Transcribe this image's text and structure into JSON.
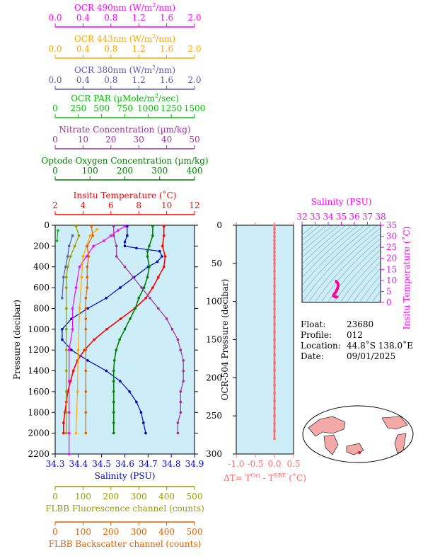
{
  "colors": {
    "ocr490": "#ff00ff",
    "ocr443": "#ffa500",
    "ocr380": "#5a5aa8",
    "par": "#00c000",
    "nitrate": "#993399",
    "oxygen": "#007f00",
    "temperature": "#ff0000",
    "salinity": "#0000cc",
    "fluorescence": "#999900",
    "backscatter": "#e06000",
    "panel_bg": "#cdeef8",
    "dt": "#ff6a6a",
    "ts_curve": "#ff0099",
    "black": "#000000",
    "land": "#f4a8a8",
    "ocean": "#ffffff"
  },
  "chart_data": [
    {
      "type": "line",
      "name": "profile",
      "ylabel": "Pressure (decibar)",
      "y_ticks": [
        "0",
        "200",
        "400",
        "600",
        "800",
        "1000",
        "1200",
        "1400",
        "1600",
        "1800",
        "2000",
        "2200"
      ],
      "ylim": [
        0,
        2200
      ],
      "y_inverted": true,
      "top_axes": [
        {
          "key": "ocr490",
          "label_pre": "OCR 490nm (W/m",
          "label_sup": "2",
          "label_post": "/nm)",
          "ticks": [
            "0.0",
            "0.4",
            "0.8",
            "1.2",
            "1.6",
            "2.0"
          ],
          "range": [
            0,
            2
          ]
        },
        {
          "key": "ocr443",
          "label_pre": "OCR 443nm (W/m",
          "label_sup": "2",
          "label_post": "/nm)",
          "ticks": [
            "0.0",
            "0.4",
            "0.8",
            "1.2",
            "1.6",
            "2.0"
          ],
          "range": [
            0,
            2
          ]
        },
        {
          "key": "ocr380",
          "label_pre": "OCR 380nm (W/m",
          "label_sup": "2",
          "label_post": "/nm)",
          "ticks": [
            "0.0",
            "0.4",
            "0.8",
            "1.2",
            "1.6",
            "2.0"
          ],
          "range": [
            0,
            2
          ]
        },
        {
          "key": "par",
          "label_pre": "OCR PAR (µMole/m",
          "label_sup": "2",
          "label_post": "/sec)",
          "ticks": [
            "0",
            "250",
            "500",
            "750",
            "1000",
            "1250",
            "1500"
          ],
          "range": [
            0,
            1500
          ]
        },
        {
          "key": "nitrate",
          "label_pre": "Nitrate Concentration (µm/kg)",
          "label_sup": "",
          "label_post": "",
          "ticks": [
            "0",
            "10",
            "20",
            "30",
            "40",
            "50"
          ],
          "range": [
            0,
            50
          ]
        },
        {
          "key": "oxygen",
          "label_pre": "Optode Oxygen Concentration (µm/kg)",
          "label_sup": "",
          "label_post": "",
          "ticks": [
            "0",
            "100",
            "200",
            "300",
            "400"
          ],
          "range": [
            0,
            400
          ]
        },
        {
          "key": "temperature",
          "label_pre": "Insitu Temperature (˚C)",
          "label_sup": "",
          "label_post": "",
          "ticks": [
            "2",
            "4",
            "6",
            "8",
            "10",
            "12"
          ],
          "range": [
            2,
            12
          ]
        }
      ],
      "bottom_axes": [
        {
          "key": "salinity",
          "label": "Salinity (PSU)",
          "ticks": [
            "34.3",
            "34.4",
            "34.5",
            "34.6",
            "34.7",
            "34.8",
            "34.9"
          ],
          "range": [
            34.3,
            34.9
          ]
        },
        {
          "key": "fluorescence",
          "label": "FLBB Fluorescence channel (counts)",
          "ticks": [
            "0",
            "100",
            "200",
            "300",
            "400",
            "500"
          ],
          "range": [
            0,
            500
          ]
        },
        {
          "key": "backscatter",
          "label": "FLBB Backscatter channel (counts)",
          "ticks": [
            "0",
            "100",
            "200",
            "300",
            "400",
            "500"
          ],
          "range": [
            0,
            500
          ]
        }
      ],
      "series": [
        {
          "key": "temperature",
          "points": [
            [
              9.8,
              10
            ],
            [
              9.8,
              100
            ],
            [
              9.7,
              200
            ],
            [
              9.9,
              300
            ],
            [
              9.8,
              400
            ],
            [
              9.4,
              500
            ],
            [
              9.0,
              600
            ],
            [
              8.5,
              700
            ],
            [
              7.7,
              800
            ],
            [
              6.7,
              900
            ],
            [
              5.7,
              1000
            ],
            [
              4.8,
              1100
            ],
            [
              4.1,
              1200
            ],
            [
              3.6,
              1300
            ],
            [
              3.3,
              1400
            ],
            [
              3.1,
              1500
            ],
            [
              2.9,
              1600
            ],
            [
              2.8,
              1700
            ],
            [
              2.7,
              1800
            ],
            [
              2.6,
              1900
            ],
            [
              2.6,
              2000
            ]
          ]
        },
        {
          "key": "salinity",
          "points": [
            [
              34.61,
              10
            ],
            [
              34.61,
              100
            ],
            [
              34.6,
              160
            ],
            [
              34.6,
              200
            ],
            [
              34.65,
              220
            ],
            [
              34.75,
              250
            ],
            [
              34.76,
              300
            ],
            [
              34.74,
              350
            ],
            [
              34.7,
              400
            ],
            [
              34.64,
              500
            ],
            [
              34.58,
              600
            ],
            [
              34.52,
              700
            ],
            [
              34.44,
              800
            ],
            [
              34.37,
              900
            ],
            [
              34.33,
              1000
            ],
            [
              34.33,
              1100
            ],
            [
              34.37,
              1200
            ],
            [
              34.44,
              1300
            ],
            [
              34.52,
              1400
            ],
            [
              34.58,
              1500
            ],
            [
              34.62,
              1600
            ],
            [
              34.65,
              1700
            ],
            [
              34.67,
              1800
            ],
            [
              34.68,
              1900
            ],
            [
              34.69,
              2000
            ]
          ]
        },
        {
          "key": "oxygen",
          "points": [
            [
              280,
              10
            ],
            [
              280,
              100
            ],
            [
              270,
              200
            ],
            [
              265,
              250
            ],
            [
              265,
              300
            ],
            [
              270,
              400
            ],
            [
              265,
              500
            ],
            [
              255,
              600
            ],
            [
              240,
              700
            ],
            [
              230,
              800
            ],
            [
              215,
              900
            ],
            [
              200,
              1000
            ],
            [
              185,
              1100
            ],
            [
              175,
              1200
            ],
            [
              170,
              1300
            ],
            [
              168,
              1400
            ],
            [
              168,
              1500
            ],
            [
              168,
              1600
            ],
            [
              168,
              1700
            ],
            [
              168,
              1800
            ],
            [
              168,
              1900
            ],
            [
              168,
              2000
            ]
          ]
        },
        {
          "key": "nitrate",
          "points": [
            [
              21,
              10
            ],
            [
              21,
              100
            ],
            [
              22,
              200
            ],
            [
              22,
              300
            ],
            [
              25,
              400
            ],
            [
              28,
              500
            ],
            [
              31,
              600
            ],
            [
              34,
              700
            ],
            [
              37,
              800
            ],
            [
              40,
              900
            ],
            [
              42,
              1000
            ],
            [
              44,
              1100
            ],
            [
              45,
              1200
            ],
            [
              46,
              1300
            ],
            [
              46,
              1400
            ],
            [
              46,
              1500
            ],
            [
              45,
              1600
            ],
            [
              45,
              1700
            ],
            [
              45,
              1800
            ],
            [
              44,
              1900
            ],
            [
              44,
              2000
            ]
          ]
        },
        {
          "key": "ocr490",
          "points": [
            [
              1.0,
              10
            ],
            [
              0.9,
              50
            ],
            [
              0.8,
              100
            ],
            [
              0.7,
              150
            ],
            [
              0.55,
              200
            ],
            [
              0.45,
              300
            ],
            [
              0.35,
              400
            ],
            [
              0.3,
              600
            ],
            [
              0.25,
              800
            ],
            [
              0.25,
              1000
            ],
            [
              0.2,
              1200
            ],
            [
              0.2,
              1500
            ],
            [
              0.2,
              1800
            ],
            [
              0.2,
              2000
            ],
            [
              0.2,
              2200
            ]
          ]
        },
        {
          "key": "ocr443",
          "points": [
            [
              0.6,
              40
            ],
            [
              0.5,
              100
            ],
            [
              0.45,
              200
            ],
            [
              0.4,
              300
            ],
            [
              0.38,
              500
            ],
            [
              0.35,
              800
            ],
            [
              0.33,
              1200
            ],
            [
              0.32,
              1600
            ],
            [
              0.3,
              2000
            ]
          ]
        },
        {
          "key": "ocr380",
          "points": [
            [
              0.25,
              100
            ],
            [
              0.2,
              200
            ],
            [
              0.18,
              300
            ],
            [
              0.15,
              400
            ],
            [
              0.12,
              500
            ],
            [
              0.1,
              700
            ]
          ]
        },
        {
          "key": "par",
          "points": [
            [
              30,
              50
            ],
            [
              20,
              150
            ]
          ]
        },
        {
          "key": "fluorescence",
          "points": [
            [
              75,
              10
            ],
            [
              85,
              100
            ],
            [
              70,
              200
            ],
            [
              55,
              300
            ],
            [
              45,
              400
            ],
            [
              40,
              500
            ],
            [
              40,
              600
            ],
            [
              40,
              800
            ],
            [
              40,
              1000
            ],
            [
              40,
              1200
            ],
            [
              40,
              1400
            ],
            [
              40,
              1600
            ],
            [
              40,
              1800
            ],
            [
              40,
              2000
            ]
          ]
        },
        {
          "key": "backscatter",
          "points": [
            [
              130,
              10
            ],
            [
              135,
              100
            ],
            [
              115,
              200
            ],
            [
              120,
              300
            ],
            [
              115,
              400
            ],
            [
              115,
              500
            ],
            [
              115,
              600
            ],
            [
              110,
              700
            ],
            [
              110,
              800
            ],
            [
              110,
              900
            ],
            [
              110,
              1000
            ],
            [
              110,
              1200
            ],
            [
              110,
              1400
            ],
            [
              110,
              1600
            ],
            [
              110,
              1800
            ],
            [
              110,
              2000
            ]
          ]
        }
      ]
    },
    {
      "type": "line",
      "name": "delta_t",
      "ylabel": "OCR-504 Pressure (decibar)",
      "xlabel_pre": "ΔT= T",
      "xlabel_sup1": "Ori",
      "xlabel_mid": " - T",
      "xlabel_sup2": "SBE",
      "xlabel_post": " (˚C)",
      "x_ticks": [
        "-1.0",
        "-0.5",
        "0.0",
        "0.5"
      ],
      "xlim": [
        -1.0,
        0.5
      ],
      "y_ticks": [
        "0",
        "50",
        "100",
        "150",
        "200",
        "250",
        "300"
      ],
      "ylim": [
        0,
        300
      ],
      "points": [
        [
          0,
          0
        ],
        [
          0,
          5
        ],
        [
          0,
          10
        ],
        [
          0,
          15
        ],
        [
          0,
          20
        ],
        [
          0,
          25
        ],
        [
          0,
          30
        ],
        [
          0,
          35
        ],
        [
          0,
          40
        ],
        [
          0,
          45
        ],
        [
          0,
          50
        ],
        [
          0,
          60
        ],
        [
          0,
          70
        ],
        [
          0,
          80
        ],
        [
          0,
          90
        ],
        [
          0,
          100
        ],
        [
          0,
          110
        ],
        [
          0,
          120
        ],
        [
          0,
          130
        ],
        [
          0,
          140
        ],
        [
          0,
          150
        ],
        [
          0,
          160
        ],
        [
          0,
          170
        ],
        [
          0,
          180
        ],
        [
          0,
          190
        ],
        [
          0,
          200
        ],
        [
          0,
          210
        ],
        [
          0,
          220
        ],
        [
          0,
          230
        ],
        [
          0,
          240
        ],
        [
          0,
          250
        ],
        [
          0,
          260
        ],
        [
          0,
          270
        ],
        [
          0,
          280
        ]
      ]
    },
    {
      "type": "line",
      "name": "ts",
      "xlabel": "Salinity (PSU)",
      "ylabel": "Insitu Temperature (˚C)",
      "x_ticks": [
        "32",
        "33",
        "34",
        "35",
        "36",
        "37",
        "38"
      ],
      "xlim": [
        32,
        38
      ],
      "y_ticks": [
        "0",
        "5",
        "10",
        "15",
        "20",
        "25",
        "30",
        "35"
      ],
      "ylim": [
        0,
        35
      ],
      "points": [
        [
          34.6,
          9.8
        ],
        [
          34.62,
          9.5
        ],
        [
          34.75,
          8.5
        ],
        [
          34.76,
          7.5
        ],
        [
          34.72,
          6.5
        ],
        [
          34.65,
          5.5
        ],
        [
          34.55,
          4.5
        ],
        [
          34.45,
          3.7
        ],
        [
          34.4,
          3.0
        ],
        [
          34.5,
          2.6
        ],
        [
          34.7,
          2.5
        ]
      ]
    }
  ],
  "info": {
    "float_label": "Float:",
    "float_value": "23680",
    "profile_label": "Profile:",
    "profile_value": "012",
    "location_label": "Location:",
    "location_value": "44.8˚S  138.0˚E",
    "date_label": "Date:",
    "date_value": "09/01/2025"
  }
}
